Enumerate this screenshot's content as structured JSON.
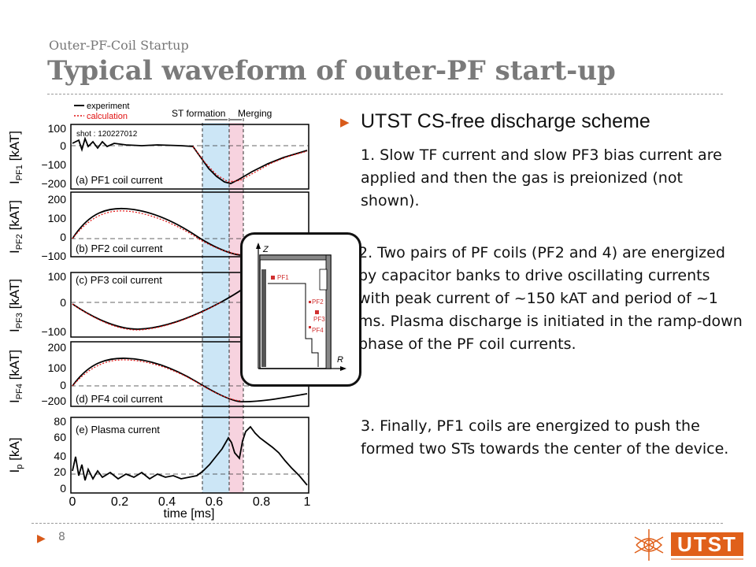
{
  "header": {
    "subtitle": "Outer-PF-Coil Startup",
    "title": "Typical waveform of outer-PF start-up"
  },
  "content": {
    "heading": "UTST CS-free discharge scheme",
    "p1": "1. Slow TF current and slow PF3 bias current are applied and then the gas is preionized (not shown).",
    "p2": "2. Two pairs of PF coils (PF2 and 4) are energized by capacitor banks to drive oscillating currents with peak current of ~150 kAT and period of ~1 ms. Plasma discharge is initiated in the ramp-down phase of the PF coil currents.",
    "p3": "3. Finally, PF1 coils are energized to push the formed two STs towards the center of the device."
  },
  "footer": {
    "page": "8"
  },
  "figure": {
    "legend": {
      "experiment": "experiment",
      "calculation": "calculation"
    },
    "shot": "shot : 120227012",
    "phase_formation": "ST formation",
    "phase_merging": "Merging",
    "x_label": "time [ms]",
    "x_ticks": [
      "0",
      "0.2",
      "0.4",
      "0.6",
      "0.8",
      "1"
    ],
    "panels": [
      {
        "label": "(a) PF1 coil current",
        "ylabel": "I",
        "ysub": "PF1",
        "yunit": " [kAT]",
        "ticks": [
          "100",
          "0",
          "−100",
          "−200"
        ]
      },
      {
        "label": "(b) PF2 coil current",
        "ylabel": "I",
        "ysub": "PF2",
        "yunit": " [kAT]",
        "ticks": [
          "200",
          "100",
          "0",
          "−100"
        ]
      },
      {
        "label": "(c) PF3 coil current",
        "ylabel": "I",
        "ysub": "PF3",
        "yunit": " [kAT]",
        "ticks": [
          "100",
          "0",
          "−100"
        ]
      },
      {
        "label": "(d) PF4 coil current",
        "ylabel": "I",
        "ysub": "PF4",
        "yunit": " [kAT]",
        "ticks": [
          "200",
          "100",
          "0",
          "−200"
        ]
      },
      {
        "label": "(e) Plasma current",
        "ylabel": "I",
        "ysub": "p",
        "yunit": " [kA]",
        "ticks": [
          "80",
          "60",
          "40",
          "20",
          "0"
        ]
      }
    ],
    "inset": {
      "z": "Z",
      "r": "R",
      "coils": [
        "PF1",
        "PF2",
        "PF3",
        "PF4"
      ]
    }
  },
  "colors": {
    "accent": "#d85a1a",
    "formation": "#cce6f6",
    "merging": "#f7d3df",
    "calc": "#e01010"
  }
}
